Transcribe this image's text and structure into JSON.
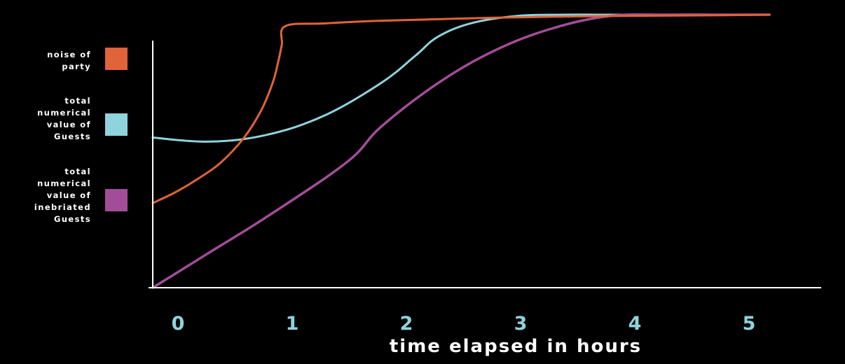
{
  "chart_data": {
    "type": "line",
    "title": "",
    "xlabel": "time elapsed in hours",
    "ylabel": "",
    "x_ticks": [
      "0",
      "1",
      "2",
      "3",
      "4",
      "5"
    ],
    "xlim": [
      0,
      5.5
    ],
    "ylim": [
      0,
      100
    ],
    "grid": false,
    "legend_position": "left",
    "axis_color": "#ffffff",
    "tick_color": "#8fd3dc",
    "series": [
      {
        "name": "noise of\nparty",
        "color": "#e0633a",
        "x": [
          0,
          0.2,
          0.4,
          0.6,
          0.8,
          0.95,
          1.05,
          1.1,
          1.13,
          1.16,
          1.5,
          2.0,
          3.0,
          4.0,
          5.0,
          5.4
        ],
        "y": [
          31,
          35,
          40,
          46,
          55,
          65,
          75,
          83,
          89,
          95.8,
          96.8,
          97.8,
          98.9,
          99.5,
          99.8,
          100
        ]
      },
      {
        "name": "total\nnumerical\nvalue of\nGuests",
        "color": "#8fd3dc",
        "x": [
          0,
          0.5,
          1.0,
          1.5,
          2.0,
          2.3,
          2.5,
          2.8,
          3.2,
          3.6,
          4.0,
          5.0,
          5.4
        ],
        "y": [
          55,
          53.5,
          56,
          63,
          75,
          85,
          92,
          97,
          99.6,
          100,
          100,
          100,
          100
        ]
      },
      {
        "name": "total\nnumerical\nvalue of\ninebriated\nGuests",
        "color": "#a24d98",
        "x": [
          0,
          0.5,
          1.0,
          1.7,
          2.0,
          2.5,
          3.0,
          3.5,
          4.0,
          4.5,
          5.0,
          5.4
        ],
        "y": [
          0,
          13,
          26,
          46,
          59,
          75,
          87,
          95,
          99.5,
          100,
          100,
          100
        ]
      }
    ]
  }
}
